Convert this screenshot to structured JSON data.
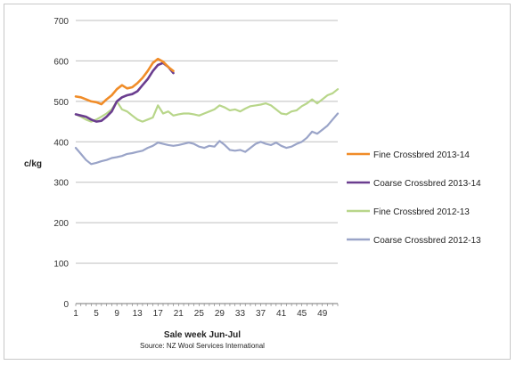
{
  "chart_data": {
    "type": "line",
    "title": "",
    "xlabel": "Sale week Jun-Jul",
    "ylabel": "c/kg",
    "source": "Source: NZ Wool Services International",
    "ylim": [
      0,
      700
    ],
    "yticks": [
      0,
      100,
      200,
      300,
      400,
      500,
      600,
      700
    ],
    "xlim": [
      1,
      52
    ],
    "xticks": [
      1,
      5,
      9,
      13,
      17,
      21,
      25,
      29,
      33,
      37,
      41,
      45,
      49
    ],
    "grid": "horizontal",
    "legend_position": "right",
    "series": [
      {
        "name": "Fine Crossbred 2013-14",
        "color": "#f08c28",
        "x": [
          1,
          2,
          3,
          4,
          5,
          6,
          7,
          8,
          9,
          10,
          11,
          12,
          13,
          14,
          15,
          16,
          17,
          18,
          19,
          20
        ],
        "y": [
          512,
          510,
          505,
          500,
          498,
          493,
          505,
          515,
          530,
          540,
          532,
          535,
          545,
          558,
          575,
          595,
          605,
          598,
          585,
          575
        ]
      },
      {
        "name": "Coarse Crossbred 2013-14",
        "color": "#6a3d8f",
        "x": [
          1,
          2,
          3,
          4,
          5,
          6,
          7,
          8,
          9,
          10,
          11,
          12,
          13,
          14,
          15,
          16,
          17,
          18,
          19,
          20
        ],
        "y": [
          468,
          465,
          462,
          455,
          450,
          452,
          462,
          475,
          500,
          510,
          515,
          518,
          525,
          540,
          555,
          575,
          590,
          595,
          585,
          570
        ]
      },
      {
        "name": "Fine Crossbred 2012-13",
        "color": "#b8d68a",
        "x": [
          1,
          2,
          3,
          4,
          5,
          6,
          7,
          8,
          9,
          10,
          11,
          12,
          13,
          14,
          15,
          16,
          17,
          18,
          19,
          20,
          21,
          22,
          23,
          24,
          25,
          26,
          27,
          28,
          29,
          30,
          31,
          32,
          33,
          34,
          35,
          36,
          37,
          38,
          39,
          40,
          41,
          42,
          43,
          44,
          45,
          46,
          47,
          48,
          49,
          50,
          51,
          52
        ],
        "y": [
          468,
          462,
          455,
          450,
          455,
          462,
          470,
          480,
          500,
          480,
          475,
          465,
          455,
          450,
          455,
          460,
          490,
          470,
          475,
          465,
          468,
          470,
          470,
          468,
          465,
          470,
          475,
          480,
          490,
          485,
          478,
          480,
          475,
          482,
          488,
          490,
          492,
          495,
          490,
          480,
          470,
          468,
          475,
          478,
          488,
          495,
          505,
          495,
          505,
          515,
          520,
          530
        ]
      },
      {
        "name": "Coarse Crossbred 2012-13",
        "color": "#9aa4c8",
        "x": [
          1,
          2,
          3,
          4,
          5,
          6,
          7,
          8,
          9,
          10,
          11,
          12,
          13,
          14,
          15,
          16,
          17,
          18,
          19,
          20,
          21,
          22,
          23,
          24,
          25,
          26,
          27,
          28,
          29,
          30,
          31,
          32,
          33,
          34,
          35,
          36,
          37,
          38,
          39,
          40,
          41,
          42,
          43,
          44,
          45,
          46,
          47,
          48,
          49,
          50,
          51,
          52
        ],
        "y": [
          385,
          370,
          355,
          345,
          348,
          352,
          355,
          360,
          362,
          365,
          370,
          372,
          375,
          378,
          385,
          390,
          398,
          395,
          392,
          390,
          392,
          395,
          398,
          395,
          388,
          385,
          390,
          388,
          402,
          392,
          380,
          378,
          380,
          375,
          385,
          395,
          400,
          395,
          392,
          398,
          390,
          385,
          388,
          395,
          400,
          410,
          425,
          420,
          430,
          440,
          455,
          470
        ]
      }
    ]
  }
}
